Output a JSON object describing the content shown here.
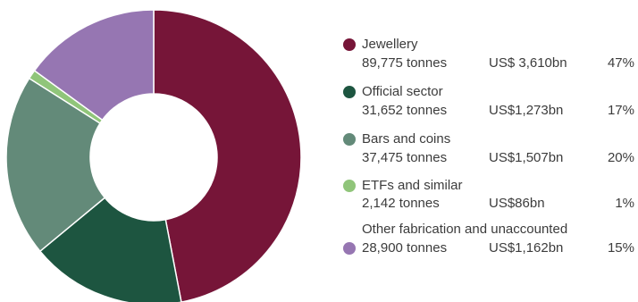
{
  "chart_data": {
    "type": "pie",
    "donut": true,
    "legend_position": "right",
    "series": [
      {
        "name": "Jewellery",
        "tonnes": "89,775 tonnes",
        "usd": "US$ 3,610bn",
        "pct": "47%",
        "value": 47,
        "color": "#761538"
      },
      {
        "name": "Official sector",
        "tonnes": "31,652 tonnes",
        "usd": "US$1,273bn",
        "pct": "17%",
        "value": 17,
        "color": "#1d5540"
      },
      {
        "name": "Bars and coins",
        "tonnes": "37,475 tonnes",
        "usd": "US$1,507bn",
        "pct": "20%",
        "value": 20,
        "color": "#638a79"
      },
      {
        "name": "ETFs and similar",
        "tonnes": "2,142 tonnes",
        "usd": "US$86bn",
        "pct": "1%",
        "value": 1,
        "color": "#90c57a"
      },
      {
        "name": "Other fabrication and unaccounted",
        "tonnes": "28,900 tonnes",
        "usd": "US$1,162bn",
        "pct": "15%",
        "value": 15,
        "color": "#9676b2"
      }
    ]
  }
}
